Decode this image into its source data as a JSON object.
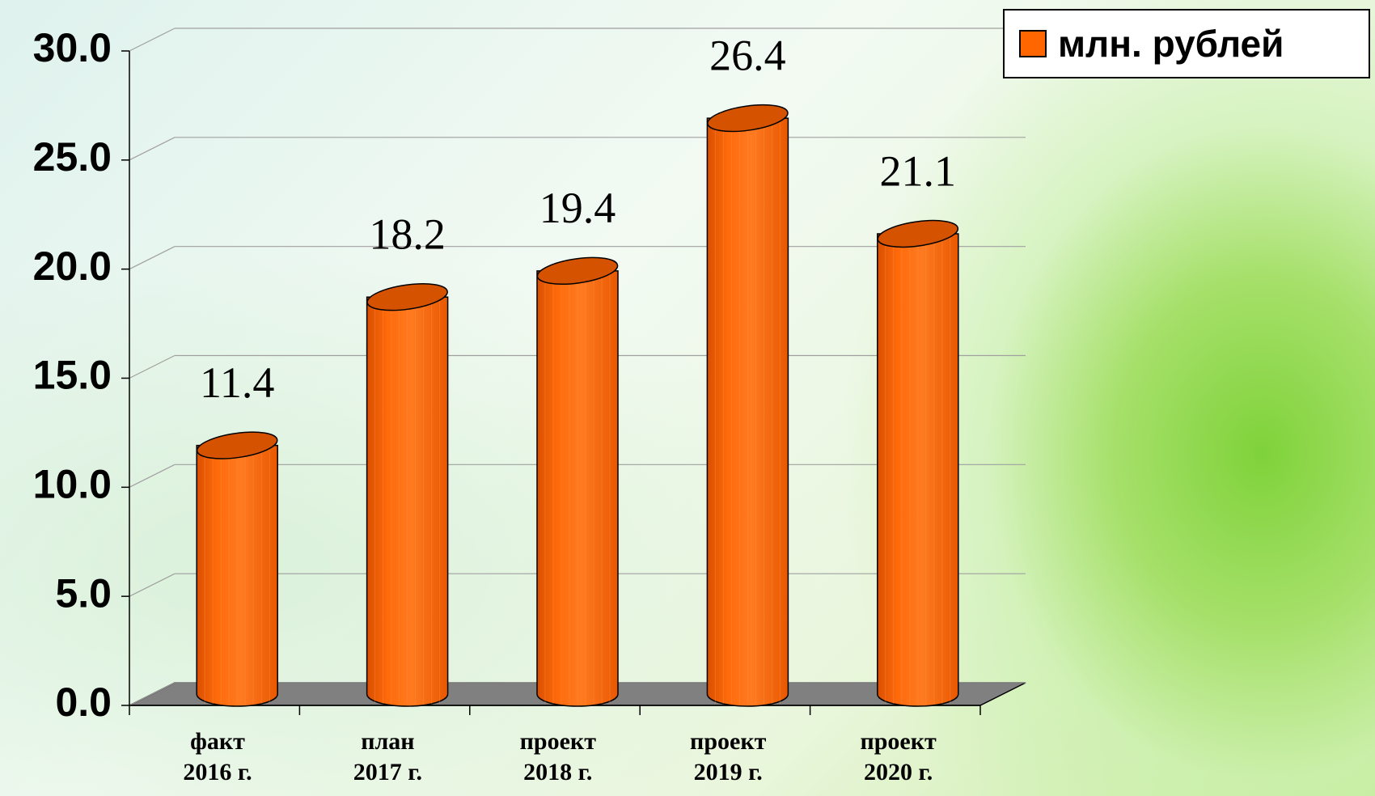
{
  "chart_data": {
    "type": "bar3d-cylinder",
    "categories": [
      "факт\n2016 г.",
      "план\n2017 г.",
      "проект\n2018 г.",
      "проект\n2019 г.",
      "проект\n2020 г."
    ],
    "series": [
      {
        "name": "млн. рублей",
        "color": "#ff6600",
        "values": [
          11.4,
          18.2,
          19.4,
          26.4,
          21.1
        ]
      }
    ],
    "ylim": [
      0,
      30
    ],
    "yticks": [
      {
        "value": 0,
        "label": "0.0"
      },
      {
        "value": 5,
        "label": "5.0"
      },
      {
        "value": 10,
        "label": "10.0"
      },
      {
        "value": 15,
        "label": "15.0"
      },
      {
        "value": 20,
        "label": "20.0"
      },
      {
        "value": 25,
        "label": "25.0"
      },
      {
        "value": 30,
        "label": "30.0"
      }
    ],
    "grid": true,
    "legend": "top-right",
    "data_labels": true
  }
}
